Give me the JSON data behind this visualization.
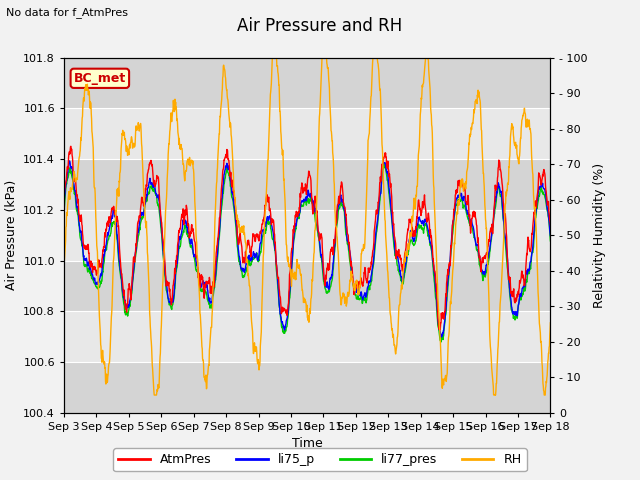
{
  "title": "Air Pressure and RH",
  "no_data_text": "No data for f_AtmPres",
  "station_label": "BC_met",
  "xlabel": "Time",
  "ylabel_left": "Air Pressure (kPa)",
  "ylabel_right": "Relativity Humidity (%)",
  "ylim_left": [
    100.4,
    101.8
  ],
  "ylim_right": [
    0,
    100
  ],
  "yticks_left": [
    100.4,
    100.6,
    100.8,
    101.0,
    101.2,
    101.4,
    101.6,
    101.8
  ],
  "yticks_right": [
    0,
    10,
    20,
    30,
    40,
    50,
    60,
    70,
    80,
    90,
    100
  ],
  "xtick_labels": [
    "Sep 3",
    "Sep 4",
    "Sep 5",
    "Sep 6",
    "Sep 7",
    "Sep 8",
    "Sep 9",
    "Sep 10",
    "Sep 11",
    "Sep 12",
    "Sep 13",
    "Sep 14",
    "Sep 15",
    "Sep 16",
    "Sep 17",
    "Sep 18"
  ],
  "color_atmpres": "#ff0000",
  "color_li75p": "#0000ff",
  "color_li77pres": "#00cc00",
  "color_rh": "#ffaa00",
  "legend_labels": [
    "AtmPres",
    "li75_p",
    "li77_pres",
    "RH"
  ],
  "background_color": "#f2f2f2",
  "plot_bg_color": "#e0e0e0",
  "band_color_light": "#d8d8d8",
  "band_color_dark": "#c8c8c8",
  "grid_color_light": "#f0f0f0",
  "station_box_facecolor": "#ffffcc",
  "station_box_edgecolor": "#cc0000",
  "station_text_color": "#cc0000",
  "title_fontsize": 12,
  "axis_label_fontsize": 9,
  "tick_fontsize": 8,
  "legend_fontsize": 9,
  "linewidth_pres": 1.0,
  "linewidth_rh": 1.0
}
